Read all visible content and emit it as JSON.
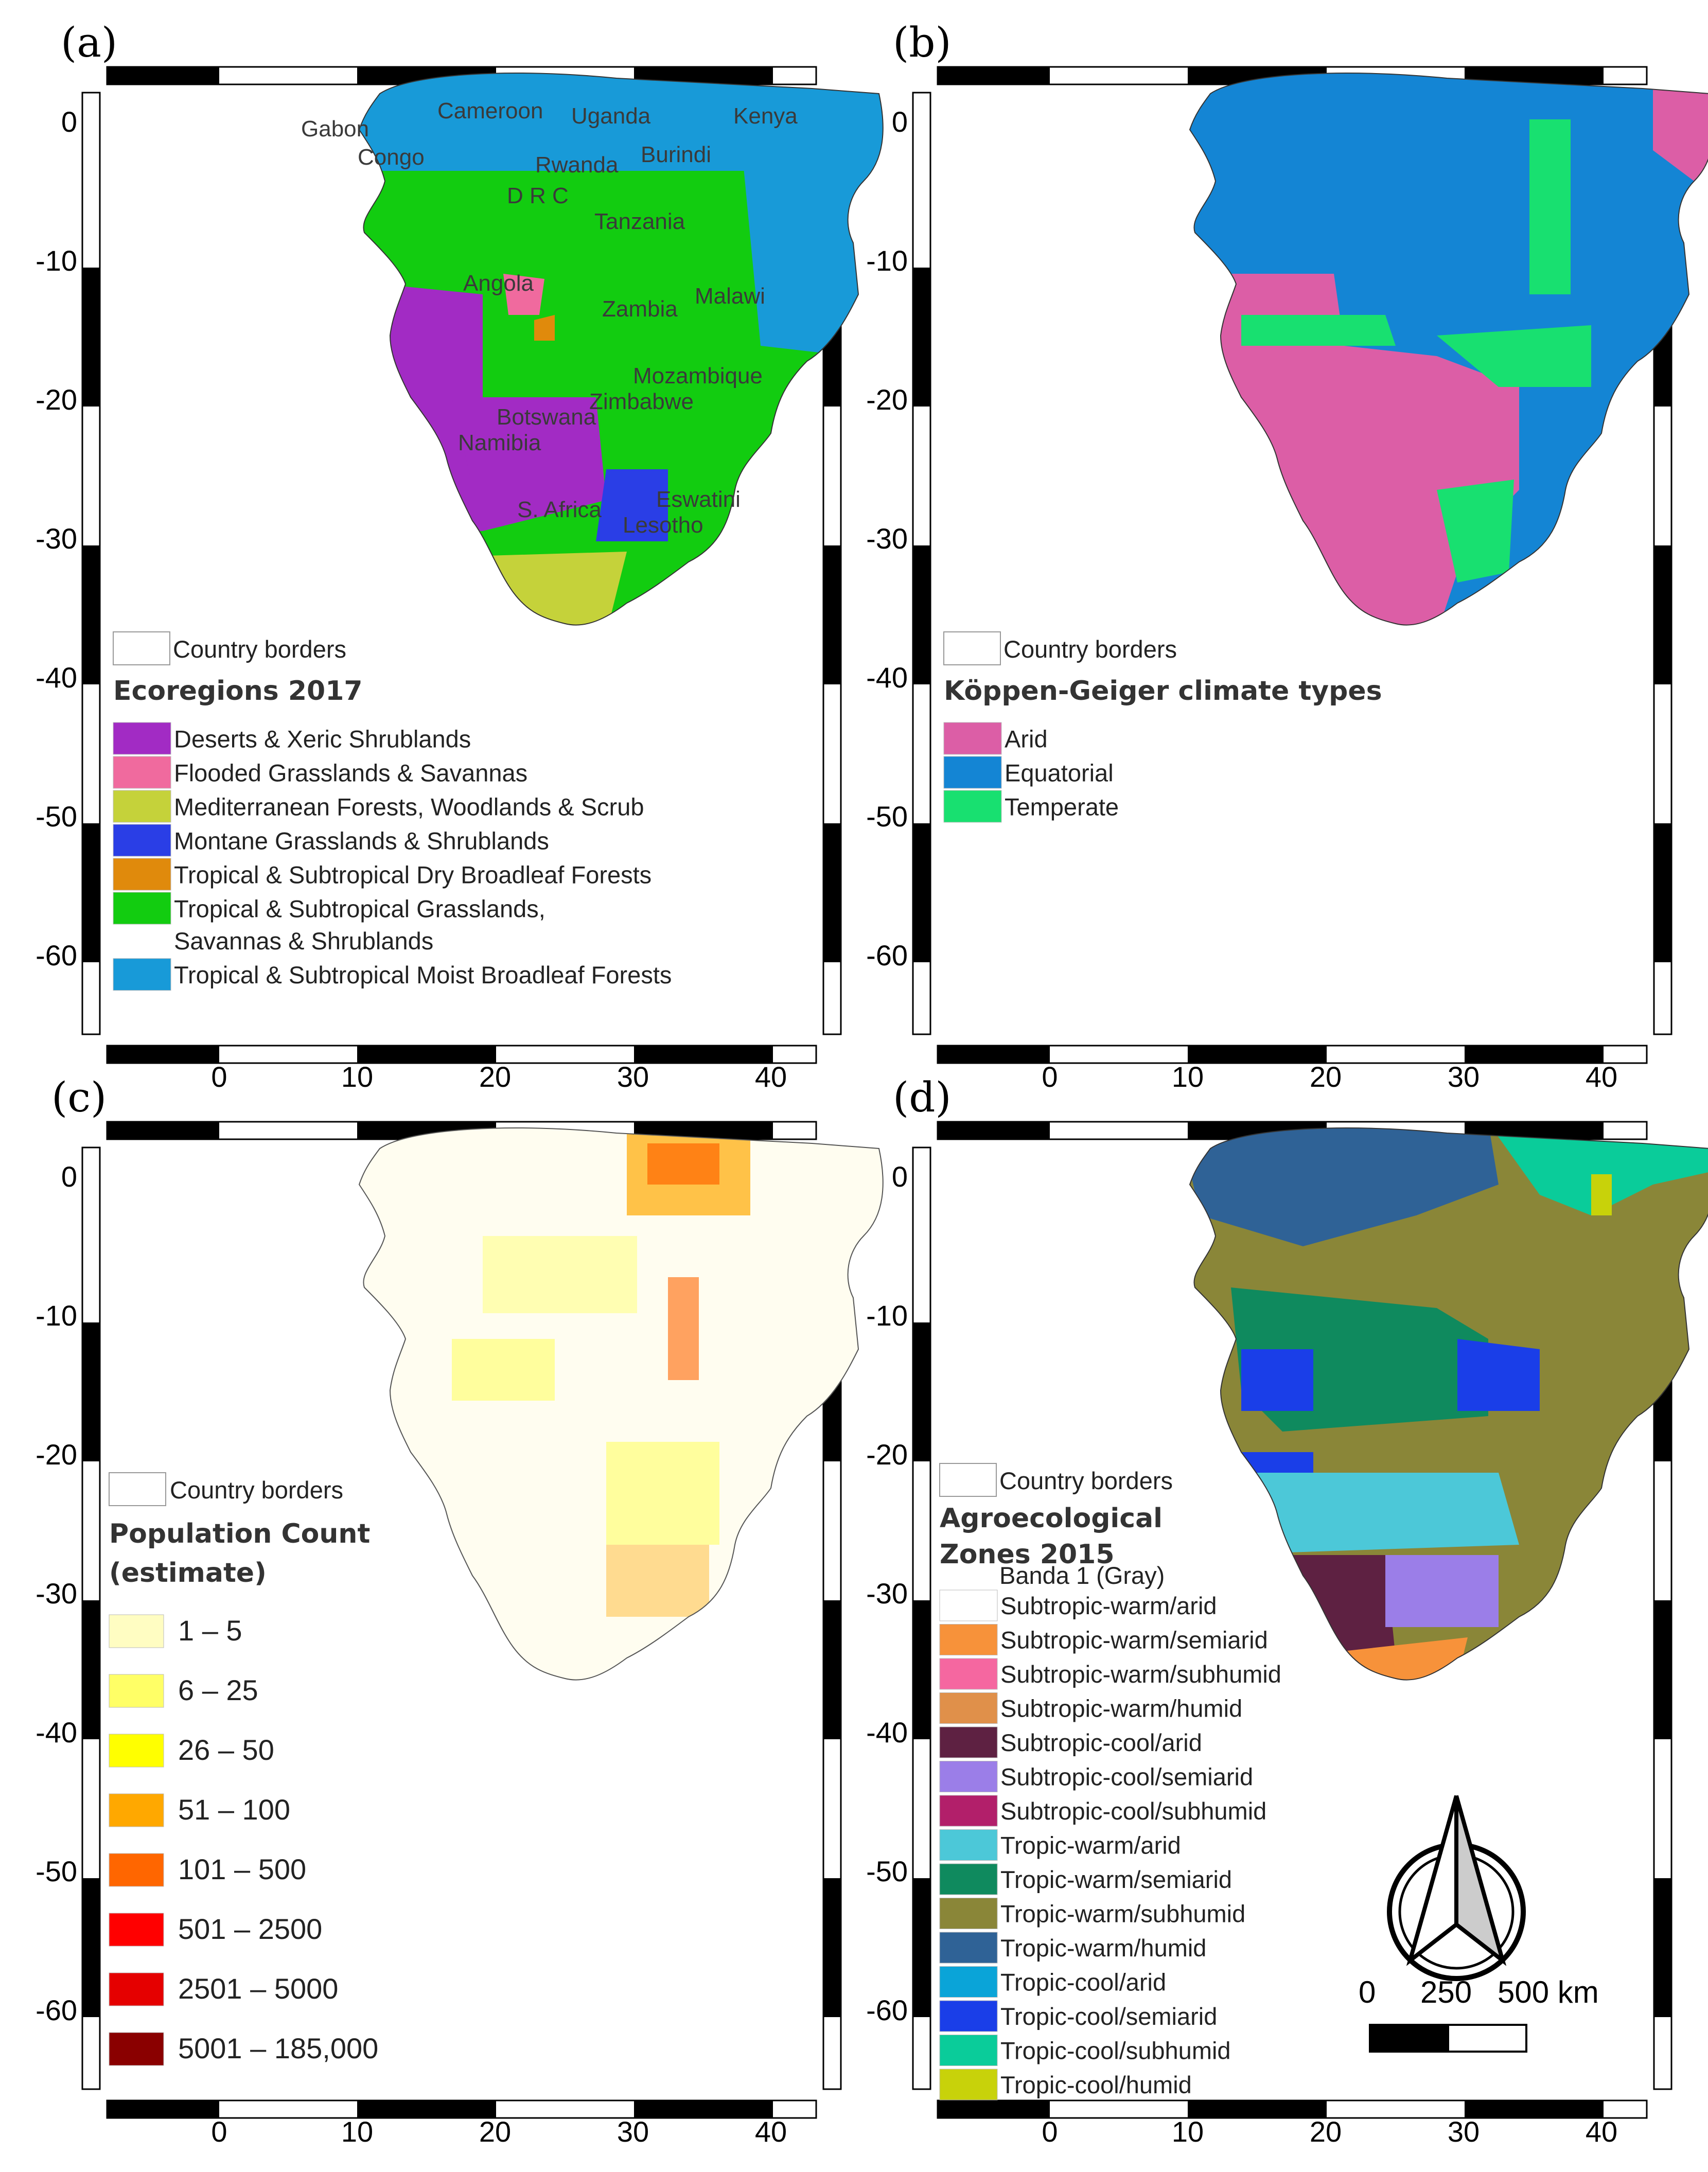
{
  "panels": [
    {
      "id": "a",
      "label": "(a)",
      "legend_title": "Ecoregions 2017",
      "borders_label": "Country borders",
      "legend": [
        {
          "label": "Deserts & Xeric Shrublands",
          "color": "#a22bc4"
        },
        {
          "label": "Flooded Grasslands & Savannas",
          "color": "#f06a9e"
        },
        {
          "label": "Mediterranean Forests, Woodlands & Scrub",
          "color": "#c5d23a"
        },
        {
          "label": "Montane Grasslands & Shrublands",
          "color": "#2a3ee6"
        },
        {
          "label": "Tropical & Subtropical Dry Broadleaf Forests",
          "color": "#e08a0c"
        },
        {
          "label": "Tropical & Subtropical Grasslands,",
          "label2": "Savannas & Shrublands",
          "color": "#12cc10"
        },
        {
          "label": "Tropical & Subtropical Moist Broadleaf Forests",
          "color": "#189ad8"
        }
      ],
      "countries": [
        "Cameroon",
        "Uganda",
        "Kenya",
        "Gabon",
        "Rwanda",
        "Burindi",
        "Congo",
        "D R C",
        "Tanzania",
        "Angola",
        "Malawi",
        "Zambia",
        "Mozambique",
        "Zimbabwe",
        "Botswana",
        "Namibia",
        "Eswatini",
        "S. Africa",
        "Lesotho"
      ]
    },
    {
      "id": "b",
      "label": "(b)",
      "legend_title": "Köppen-Geiger climate types",
      "borders_label": "Country borders",
      "legend": [
        {
          "label": "Arid",
          "color": "#dc5ea6"
        },
        {
          "label": "Equatorial",
          "color": "#1485d4"
        },
        {
          "label": "Temperate",
          "color": "#18e070"
        }
      ]
    },
    {
      "id": "c",
      "label": "(c)",
      "legend_title": "Population Count",
      "legend_title2": "(estimate)",
      "borders_label": "Country borders",
      "legend": [
        {
          "label": "1 – 5",
          "color": "#fffdc2"
        },
        {
          "label": "6 – 25",
          "color": "#ffff66"
        },
        {
          "label": "26 – 50",
          "color": "#ffff00"
        },
        {
          "label": "51 – 100",
          "color": "#ffa800"
        },
        {
          "label": "101 – 500",
          "color": "#ff6600"
        },
        {
          "label": "501 – 2500",
          "color": "#ff0000"
        },
        {
          "label": "2501 – 5000",
          "color": "#e50000"
        },
        {
          "label": "5001 – 185,000",
          "color": "#8a0000"
        }
      ]
    },
    {
      "id": "d",
      "label": "(d)",
      "legend_title": "Agroecological",
      "legend_title2": "Zones 2015",
      "band_label": "Banda 1 (Gray)",
      "borders_label": "Country borders",
      "legend": [
        {
          "label": "Subtropic-warm/arid",
          "color": "#ffffff"
        },
        {
          "label": "Subtropic-warm/semiarid",
          "color": "#f7923a"
        },
        {
          "label": "Subtropic-warm/subhumid",
          "color": "#f567a0"
        },
        {
          "label": "Subtropic-warm/humid",
          "color": "#e0904a"
        },
        {
          "label": "Subtropic-cool/arid",
          "color": "#5e2142"
        },
        {
          "label": "Subtropic-cool/semiarid",
          "color": "#9b7ee8"
        },
        {
          "label": "Subtropic-cool/subhumid",
          "color": "#b21f6a"
        },
        {
          "label": "Tropic-warm/arid",
          "color": "#4cc8d8"
        },
        {
          "label": "Tropic-warm/semiarid",
          "color": "#0f8a5e"
        },
        {
          "label": "Tropic-warm/subhumid",
          "color": "#8a8638"
        },
        {
          "label": "Tropic-warm/humid",
          "color": "#2f6296"
        },
        {
          "label": "Tropic-cool/arid",
          "color": "#0aa4d8"
        },
        {
          "label": "Tropic-cool/semiarid",
          "color": "#1a3ee8"
        },
        {
          "label": "Tropic-cool/subhumid",
          "color": "#0acc9a"
        },
        {
          "label": "Tropic-cool/humid",
          "color": "#c8d20a"
        }
      ],
      "scalebar": {
        "labels": [
          "0",
          "250",
          "500 km"
        ]
      }
    }
  ],
  "axes": {
    "x_ticks": [
      "0",
      "10",
      "20",
      "30",
      "40"
    ],
    "y_ticks": [
      "0",
      "-10",
      "-20",
      "-30",
      "-40",
      "-50",
      "-60"
    ]
  }
}
